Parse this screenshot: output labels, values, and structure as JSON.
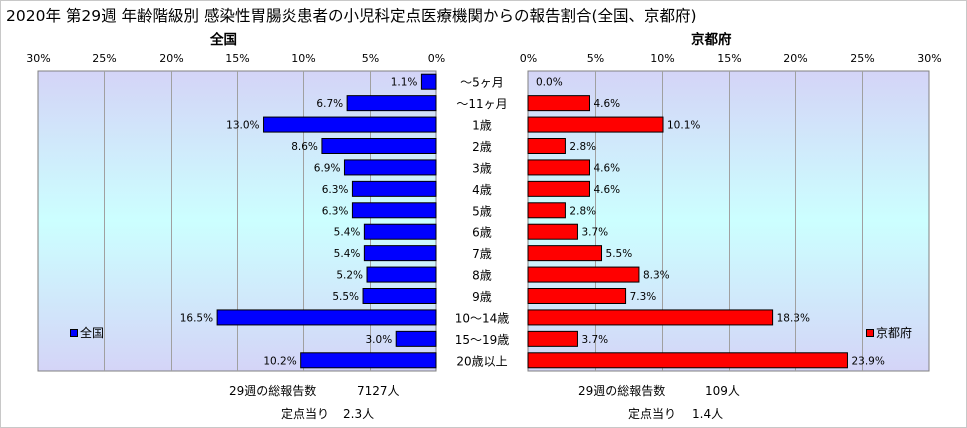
{
  "title": "2020年 第29週 年齢階級別 感染性胃腸炎患者の小児科定点医療機関からの報告割合(全国、京都府)",
  "colors": {
    "national": "#0000ff",
    "kyoto": "#ff0000",
    "plot_bg_top": "#d4d4f7",
    "plot_bg_mid": "#ccffff"
  },
  "chart_data": [
    {
      "type": "bar",
      "title": "全国",
      "orientation": "horizontal",
      "direction": "right-to-left",
      "categories": [
        "～5ヶ月",
        "～11ヶ月",
        "1歳",
        "2歳",
        "3歳",
        "4歳",
        "5歳",
        "6歳",
        "7歳",
        "8歳",
        "9歳",
        "10～14歳",
        "15～19歳",
        "20歳以上"
      ],
      "series": [
        {
          "name": "全国",
          "values": [
            1.1,
            6.7,
            13.0,
            8.6,
            6.9,
            6.3,
            6.3,
            5.4,
            5.4,
            5.2,
            5.5,
            16.5,
            3.0,
            10.2
          ]
        }
      ],
      "value_labels": [
        "1.1%",
        "6.7%",
        "13.0%",
        "8.6%",
        "6.9%",
        "6.3%",
        "6.3%",
        "5.4%",
        "5.4%",
        "5.2%",
        "5.5%",
        "16.5%",
        "3.0%",
        "10.2%"
      ],
      "xlim": [
        0,
        30
      ],
      "tick_labels": [
        "0%",
        "5%",
        "10%",
        "15%",
        "20%",
        "25%",
        "30%"
      ],
      "legend": "left",
      "grid": true
    },
    {
      "type": "bar",
      "title": "京都府",
      "orientation": "horizontal",
      "direction": "left-to-right",
      "categories": [
        "～5ヶ月",
        "～11ヶ月",
        "1歳",
        "2歳",
        "3歳",
        "4歳",
        "5歳",
        "6歳",
        "7歳",
        "8歳",
        "9歳",
        "10～14歳",
        "15～19歳",
        "20歳以上"
      ],
      "series": [
        {
          "name": "京都府",
          "values": [
            0.0,
            4.6,
            10.1,
            2.8,
            4.6,
            4.6,
            2.8,
            3.7,
            5.5,
            8.3,
            7.3,
            18.3,
            3.7,
            23.9
          ]
        }
      ],
      "value_labels": [
        "0.0%",
        "4.6%",
        "10.1%",
        "2.8%",
        "4.6%",
        "4.6%",
        "2.8%",
        "3.7%",
        "5.5%",
        "8.3%",
        "7.3%",
        "18.3%",
        "3.7%",
        "23.9%"
      ],
      "xlim": [
        0,
        30
      ],
      "tick_labels": [
        "0%",
        "5%",
        "10%",
        "15%",
        "20%",
        "25%",
        "30%"
      ],
      "legend": "right",
      "grid": true
    }
  ],
  "footer": {
    "national_total_label": "29週の総報告数",
    "national_total_value": "7127人",
    "national_per_label": "定点当り",
    "national_per_value": "2.3人",
    "kyoto_total_label": "29週の総報告数",
    "kyoto_total_value": "109人",
    "kyoto_per_label": "定点当り",
    "kyoto_per_value": "1.4人"
  }
}
